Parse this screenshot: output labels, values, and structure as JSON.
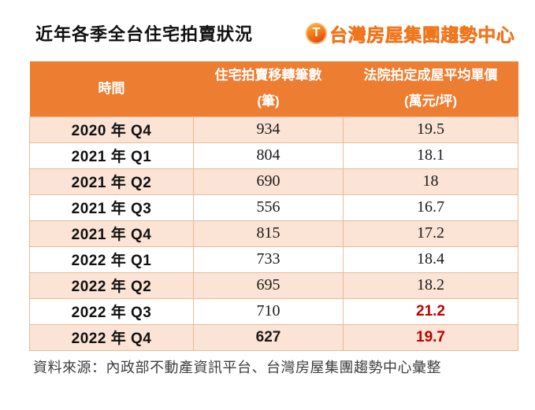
{
  "title": "近年各季全台住宅拍賣狀況",
  "logo": {
    "icon": "T",
    "text": "台灣房屋集團趨勢中心"
  },
  "table": {
    "headers": [
      {
        "line1": "時間",
        "line2": ""
      },
      {
        "line1": "住宅拍賣移轉筆數",
        "line2": "(筆)"
      },
      {
        "line1": "法院拍定成屋平均單價",
        "line2": "(萬元/坪)"
      }
    ],
    "rows": [
      {
        "time": "2020 年 Q4",
        "count": "934",
        "price": "19.5",
        "count_bold": false,
        "price_red": false
      },
      {
        "time": "2021 年 Q1",
        "count": "804",
        "price": "18.1",
        "count_bold": false,
        "price_red": false
      },
      {
        "time": "2021 年 Q2",
        "count": "690",
        "price": "18",
        "count_bold": false,
        "price_red": false
      },
      {
        "time": "2021 年 Q3",
        "count": "556",
        "price": "16.7",
        "count_bold": false,
        "price_red": false
      },
      {
        "time": "2021 年 Q4",
        "count": "815",
        "price": "17.2",
        "count_bold": false,
        "price_red": false
      },
      {
        "time": "2022 年 Q1",
        "count": "733",
        "price": "18.4",
        "count_bold": false,
        "price_red": false
      },
      {
        "time": "2022 年 Q2",
        "count": "695",
        "price": "18.2",
        "count_bold": false,
        "price_red": false
      },
      {
        "time": "2022 年 Q3",
        "count": "710",
        "price": "21.2",
        "count_bold": false,
        "price_red": true
      },
      {
        "time": "2022 年 Q4",
        "count": "627",
        "price": "19.7",
        "count_bold": true,
        "price_red": true
      }
    ]
  },
  "footer": "資料來源：內政部不動產資訊平台、台灣房屋集團趨勢中心彙整",
  "colors": {
    "header_bg": "#ed7d31",
    "row_alt_bg": "#fbe3d5",
    "grid_line": "#ebbc92",
    "highlight_red": "#c00000",
    "logo_orange": "#f07818"
  }
}
